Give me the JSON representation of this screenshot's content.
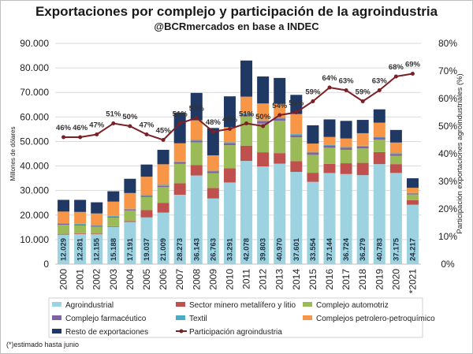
{
  "title": "Exportaciones por complejo y participación de la agroindustria",
  "subtitle": "@BCRmercados en base a INDEC",
  "footnote": "(*)estimado hasta junio",
  "chart_data": {
    "type": "bar",
    "stacked": true,
    "categories": [
      "2000",
      "2001",
      "2002",
      "2003",
      "2004",
      "2005",
      "2006",
      "2007",
      "2008",
      "2009",
      "2010",
      "2011",
      "2012",
      "2013",
      "2014",
      "2015",
      "2016",
      "2017",
      "2018",
      "2019",
      "2020",
      "*2021"
    ],
    "ylabel": "Millones de dólares",
    "y2label": "Participación exportaciones agroindustriales (%)",
    "ylim": [
      0,
      90000
    ],
    "y2lim": [
      0,
      80
    ],
    "yticks": [
      "0",
      "10.000",
      "20.000",
      "30.000",
      "40.000",
      "50.000",
      "60.000",
      "70.000",
      "80.000",
      "90.000"
    ],
    "y2ticks": [
      "0%",
      "10%",
      "20%",
      "30%",
      "40%",
      "50%",
      "60%",
      "70%",
      "80%"
    ],
    "series": [
      {
        "name": "Agroindustrial",
        "color": "#9dd3e0",
        "values": [
          12029,
          12281,
          12155,
          15188,
          17191,
          19037,
          21009,
          28273,
          36143,
          26763,
          33291,
          42078,
          39803,
          40970,
          37601,
          33554,
          37144,
          36724,
          36279,
          40783,
          37175,
          24217
        ]
      },
      {
        "name": "Sector minero metalífero y litio",
        "color": "#c0504d",
        "values": [
          300,
          300,
          300,
          300,
          400,
          3000,
          4000,
          4700,
          4200,
          4300,
          5800,
          6200,
          5800,
          4300,
          4400,
          3700,
          3700,
          4400,
          5000,
          4900,
          3600,
          1900
        ]
      },
      {
        "name": "Complejo automotriz",
        "color": "#9bbb59",
        "values": [
          3700,
          3200,
          2800,
          3500,
          4300,
          5300,
          6400,
          7900,
          9300,
          6000,
          9400,
          12000,
          11700,
          13200,
          9700,
          7300,
          6600,
          5500,
          5900,
          5100,
          3400,
          2300
        ]
      },
      {
        "name": "Complejo farmacéutico",
        "color": "#8064a2",
        "values": [
          400,
          400,
          400,
          400,
          400,
          500,
          500,
          600,
          700,
          700,
          800,
          900,
          900,
          900,
          900,
          900,
          900,
          800,
          800,
          800,
          700,
          400
        ]
      },
      {
        "name": "Textil",
        "color": "#4bacc6",
        "values": [
          300,
          300,
          300,
          300,
          300,
          400,
          400,
          400,
          400,
          300,
          400,
          400,
          400,
          400,
          400,
          300,
          300,
          300,
          300,
          300,
          300,
          200
        ]
      },
      {
        "name": "Complejos petrolero-petroquímico",
        "color": "#f79646",
        "values": [
          4700,
          4800,
          4700,
          5800,
          6400,
          7400,
          8400,
          7400,
          7900,
          6300,
          6200,
          6700,
          6900,
          5600,
          8200,
          3400,
          3200,
          3500,
          5100,
          5800,
          4400,
          2100
        ]
      },
      {
        "name": "Resto de exportaciones",
        "color": "#1f3864",
        "values": [
          4771,
          4919,
          4545,
          4212,
          5809,
          4963,
          5887,
          12527,
          11157,
          11137,
          12509,
          14722,
          10996,
          10530,
          7799,
          7446,
          7156,
          7176,
          5421,
          5417,
          5125,
          3883
        ]
      }
    ],
    "line": {
      "name": "Participación agroindustria",
      "color": "#7b2027",
      "values": [
        46,
        46,
        47,
        51,
        50,
        47,
        45,
        51,
        53,
        48,
        49,
        51,
        50,
        54,
        55,
        59,
        64,
        63,
        59,
        63,
        68,
        69
      ],
      "labels": [
        "46%",
        "46%",
        "47%",
        "51%",
        "50%",
        "47%",
        "45%",
        "51%",
        "53%",
        "48%",
        "49%",
        "51%",
        "50%",
        "54%",
        "55%",
        "59%",
        "64%",
        "63%",
        "59%",
        "63%",
        "68%",
        "69%"
      ]
    },
    "agro_labels": [
      "12.029",
      "12.281",
      "12.155",
      "15.188",
      "17.191",
      "19.037",
      "21.009",
      "28.273",
      "36.143",
      "26.763",
      "33.291",
      "42.078",
      "39.803",
      "40.970",
      "37.601",
      "33.554",
      "37.144",
      "36.724",
      "36.279",
      "40.783",
      "37.175",
      "24.217"
    ],
    "legend_position": "bottom"
  }
}
